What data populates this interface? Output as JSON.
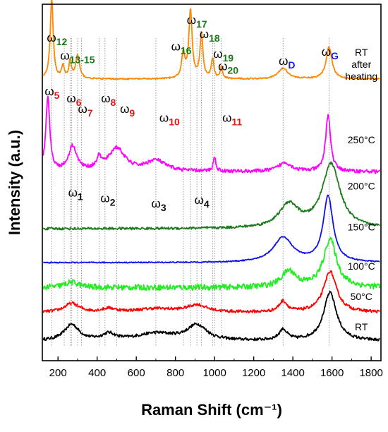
{
  "chart_data": {
    "type": "line",
    "xlabel": "Raman Shift (cm⁻¹)",
    "ylabel": "Intensity (a.u.)",
    "xlim": [
      120,
      1850
    ],
    "xticks": [
      200,
      400,
      600,
      800,
      1000,
      1200,
      1400,
      1600,
      1800
    ],
    "xtick_labels": [
      "200",
      "400",
      "600",
      "800",
      "1000",
      "1200",
      "1400",
      "1600",
      "1800"
    ],
    "y_tick_labels": "none",
    "grid": false,
    "legend": "none",
    "series": [
      {
        "name": "RT",
        "color": "#000000",
        "baseline": 0.6,
        "noise": 0.08,
        "peaks": [
          {
            "x": 270,
            "h": 0.9,
            "w": 45
          },
          {
            "x": 460,
            "h": 0.35,
            "w": 40
          },
          {
            "x": 700,
            "h": 0.4,
            "w": 120
          },
          {
            "x": 910,
            "h": 0.85,
            "w": 60
          },
          {
            "x": 1350,
            "h": 0.6,
            "w": 25
          },
          {
            "x": 1590,
            "h": 2.7,
            "w": 40
          }
        ]
      },
      {
        "name": "50°C",
        "color": "#ff0000",
        "baseline": 2.2,
        "noise": 0.08,
        "peaks": [
          {
            "x": 270,
            "h": 0.5,
            "w": 45
          },
          {
            "x": 460,
            "h": 0.2,
            "w": 40
          },
          {
            "x": 700,
            "h": 0.2,
            "w": 120
          },
          {
            "x": 910,
            "h": 0.4,
            "w": 60
          },
          {
            "x": 1350,
            "h": 0.6,
            "w": 25
          },
          {
            "x": 1590,
            "h": 2.3,
            "w": 40
          }
        ]
      },
      {
        "name": "100°C",
        "color": "#22ee22",
        "baseline": 3.6,
        "noise": 0.16,
        "peaks": [
          {
            "x": 270,
            "h": 0.3,
            "w": 45
          },
          {
            "x": 1380,
            "h": 0.9,
            "w": 45
          },
          {
            "x": 1590,
            "h": 2.7,
            "w": 40
          }
        ]
      },
      {
        "name": "150°C",
        "color": "#1010ee",
        "baseline": 5.0,
        "noise": 0.03,
        "peaks": [
          {
            "x": 1350,
            "h": 1.4,
            "w": 60
          },
          {
            "x": 1580,
            "h": 3.7,
            "w": 30
          }
        ]
      },
      {
        "name": "200°C",
        "color": "#1e7a1e",
        "baseline": 6.9,
        "noise": 0.07,
        "peaks": [
          {
            "x": 1380,
            "h": 1.3,
            "w": 60
          },
          {
            "x": 1595,
            "h": 3.6,
            "w": 55
          }
        ]
      },
      {
        "name": "250°C",
        "color": "#ff00ff",
        "baseline": 10.1,
        "noise": 0.1,
        "peaks": [
          {
            "x": 148,
            "h": 4.2,
            "w": 12
          },
          {
            "x": 275,
            "h": 1.4,
            "w": 25
          },
          {
            "x": 410,
            "h": 0.6,
            "w": 15
          },
          {
            "x": 500,
            "h": 1.3,
            "w": 50
          },
          {
            "x": 700,
            "h": 0.6,
            "w": 60
          },
          {
            "x": 1000,
            "h": 0.8,
            "w": 8
          },
          {
            "x": 1360,
            "h": 0.5,
            "w": 40
          },
          {
            "x": 1580,
            "h": 3.2,
            "w": 15
          }
        ]
      },
      {
        "name": "RT after heating",
        "color": "#ff8800",
        "baseline": 15.3,
        "noise": 0.04,
        "peaks": [
          {
            "x": 168,
            "h": 4.5,
            "w": 9
          },
          {
            "x": 225,
            "h": 0.7,
            "w": 8
          },
          {
            "x": 262,
            "h": 1.0,
            "w": 7
          },
          {
            "x": 300,
            "h": 1.3,
            "w": 12
          },
          {
            "x": 840,
            "h": 1.4,
            "w": 10
          },
          {
            "x": 877,
            "h": 3.8,
            "w": 10
          },
          {
            "x": 933,
            "h": 2.5,
            "w": 9
          },
          {
            "x": 990,
            "h": 1.1,
            "w": 8
          },
          {
            "x": 1035,
            "h": 0.7,
            "w": 6
          },
          {
            "x": 1350,
            "h": 0.6,
            "w": 30
          },
          {
            "x": 1585,
            "h": 1.8,
            "w": 18
          }
        ]
      }
    ],
    "mode_lines": [
      {
        "x": 168
      },
      {
        "x": 232
      },
      {
        "x": 262
      },
      {
        "x": 300
      },
      {
        "x": 840
      },
      {
        "x": 877
      },
      {
        "x": 933
      },
      {
        "x": 990
      },
      {
        "x": 1035
      },
      {
        "x": 270
      },
      {
        "x": 320
      },
      {
        "x": 410
      },
      {
        "x": 440
      },
      {
        "x": 500
      },
      {
        "x": 700
      },
      {
        "x": 1000
      },
      {
        "x": 910
      },
      {
        "x": 1350
      },
      {
        "x": 1585
      }
    ],
    "mode_labels": [
      {
        "base": "ω",
        "sub": "12",
        "sub_color": "#1a7a1a",
        "x": 195,
        "y": 17.4
      },
      {
        "base": "ω",
        "sub": "13-15",
        "sub_color": "#1a7a1a",
        "x": 300,
        "y": 16.4
      },
      {
        "base": "ω",
        "sub": "16",
        "sub_color": "#1a7a1a",
        "x": 830,
        "y": 16.9
      },
      {
        "base": "ω",
        "sub": "17",
        "sub_color": "#1a7a1a",
        "x": 910,
        "y": 18.4
      },
      {
        "base": "ω",
        "sub": "18",
        "sub_color": "#1a7a1a",
        "x": 975,
        "y": 17.6
      },
      {
        "base": "ω",
        "sub": "19",
        "sub_color": "#1a7a1a",
        "x": 1045,
        "y": 16.5
      },
      {
        "base": "ω",
        "sub": "20",
        "sub_color": "#1a7a1a",
        "x": 1070,
        "y": 15.8
      },
      {
        "base": "ω",
        "sub": "D",
        "sub_color": "#1e1ee0",
        "x": 1370,
        "y": 16.1
      },
      {
        "base": "ω",
        "sub": "G",
        "sub_color": "#1e1ee0",
        "x": 1590,
        "y": 16.6
      },
      {
        "base": "ω",
        "sub": "5",
        "sub_color": "#e01818",
        "x": 170,
        "y": 14.4
      },
      {
        "base": "ω",
        "sub": "6",
        "sub_color": "#e01818",
        "x": 282,
        "y": 14.0
      },
      {
        "base": "ω",
        "sub": "7",
        "sub_color": "#e01818",
        "x": 340,
        "y": 13.4
      },
      {
        "base": "ω",
        "sub": "8",
        "sub_color": "#e01818",
        "x": 458,
        "y": 14.0
      },
      {
        "base": "ω",
        "sub": "9",
        "sub_color": "#e01818",
        "x": 555,
        "y": 13.4
      },
      {
        "base": "ω",
        "sub": "10",
        "sub_color": "#e01818",
        "x": 770,
        "y": 12.9
      },
      {
        "base": "ω",
        "sub": "11",
        "sub_color": "#e01818",
        "x": 1090,
        "y": 12.9
      },
      {
        "base": "ω",
        "sub": "1",
        "sub_color": "#111111",
        "x": 290,
        "y": 8.7
      },
      {
        "base": "ω",
        "sub": "2",
        "sub_color": "#111111",
        "x": 455,
        "y": 8.4
      },
      {
        "base": "ω",
        "sub": "3",
        "sub_color": "#111111",
        "x": 715,
        "y": 8.1
      },
      {
        "base": "ω",
        "sub": "4",
        "sub_color": "#111111",
        "x": 935,
        "y": 8.3
      }
    ],
    "series_labels": [
      {
        "lines": [
          "RT",
          "after",
          "heating"
        ],
        "x": 1750,
        "y": 16.6
      },
      {
        "lines": [
          "250°C"
        ],
        "x": 1750,
        "y": 11.7
      },
      {
        "lines": [
          "200°C"
        ],
        "x": 1750,
        "y": 9.1
      },
      {
        "lines": [
          "150°C"
        ],
        "x": 1750,
        "y": 6.8
      },
      {
        "lines": [
          "100°C"
        ],
        "x": 1750,
        "y": 4.6
      },
      {
        "lines": [
          "50°C"
        ],
        "x": 1750,
        "y": 2.9
      },
      {
        "lines": [
          "RT"
        ],
        "x": 1750,
        "y": 1.2
      }
    ]
  }
}
